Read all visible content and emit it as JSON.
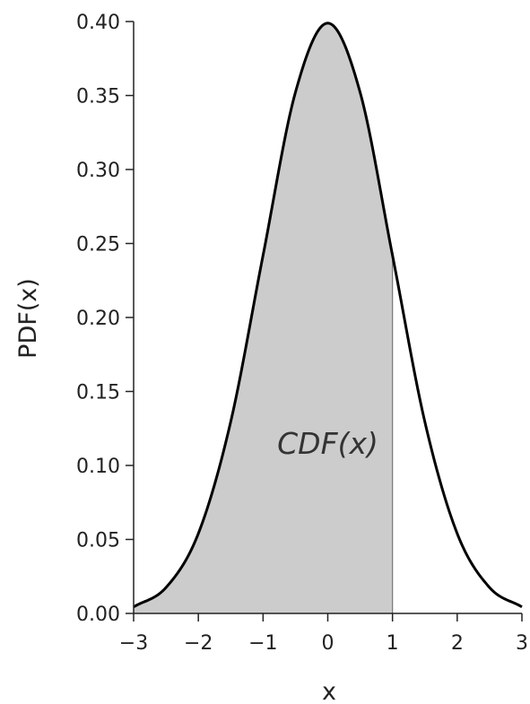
{
  "chart_data": {
    "type": "area",
    "title": "",
    "xlabel": "x",
    "ylabel": "PDF(x)",
    "xlim": [
      -3,
      3
    ],
    "ylim": [
      0,
      0.4
    ],
    "x_ticks": [
      -3,
      -2,
      -1,
      0,
      1,
      2,
      3
    ],
    "x_tick_labels": [
      "−3",
      "−2",
      "−1",
      "0",
      "1",
      "2",
      "3"
    ],
    "y_ticks": [
      0.0,
      0.05,
      0.1,
      0.15,
      0.2,
      0.25,
      0.3,
      0.35,
      0.4
    ],
    "y_tick_labels": [
      "0.00",
      "0.05",
      "0.10",
      "0.15",
      "0.20",
      "0.25",
      "0.30",
      "0.35",
      "0.40"
    ],
    "grid": false,
    "series": [
      {
        "x": [
          -3,
          -2.5,
          -2,
          -1.5,
          -1,
          -0.5,
          0,
          0.5,
          1,
          1.5,
          2,
          2.5,
          3
        ],
        "values": [
          0.0044,
          0.0175,
          0.054,
          0.1295,
          0.242,
          0.3521,
          0.3989,
          0.3521,
          0.242,
          0.1295,
          0.054,
          0.0175,
          0.0044
        ],
        "color": "#000000"
      }
    ],
    "shaded_region": {
      "from": -3,
      "to": 1,
      "color": "#cccccc"
    },
    "annotations": [
      {
        "text": "CDF(x)",
        "x": 0.0,
        "y": 0.108
      }
    ]
  }
}
